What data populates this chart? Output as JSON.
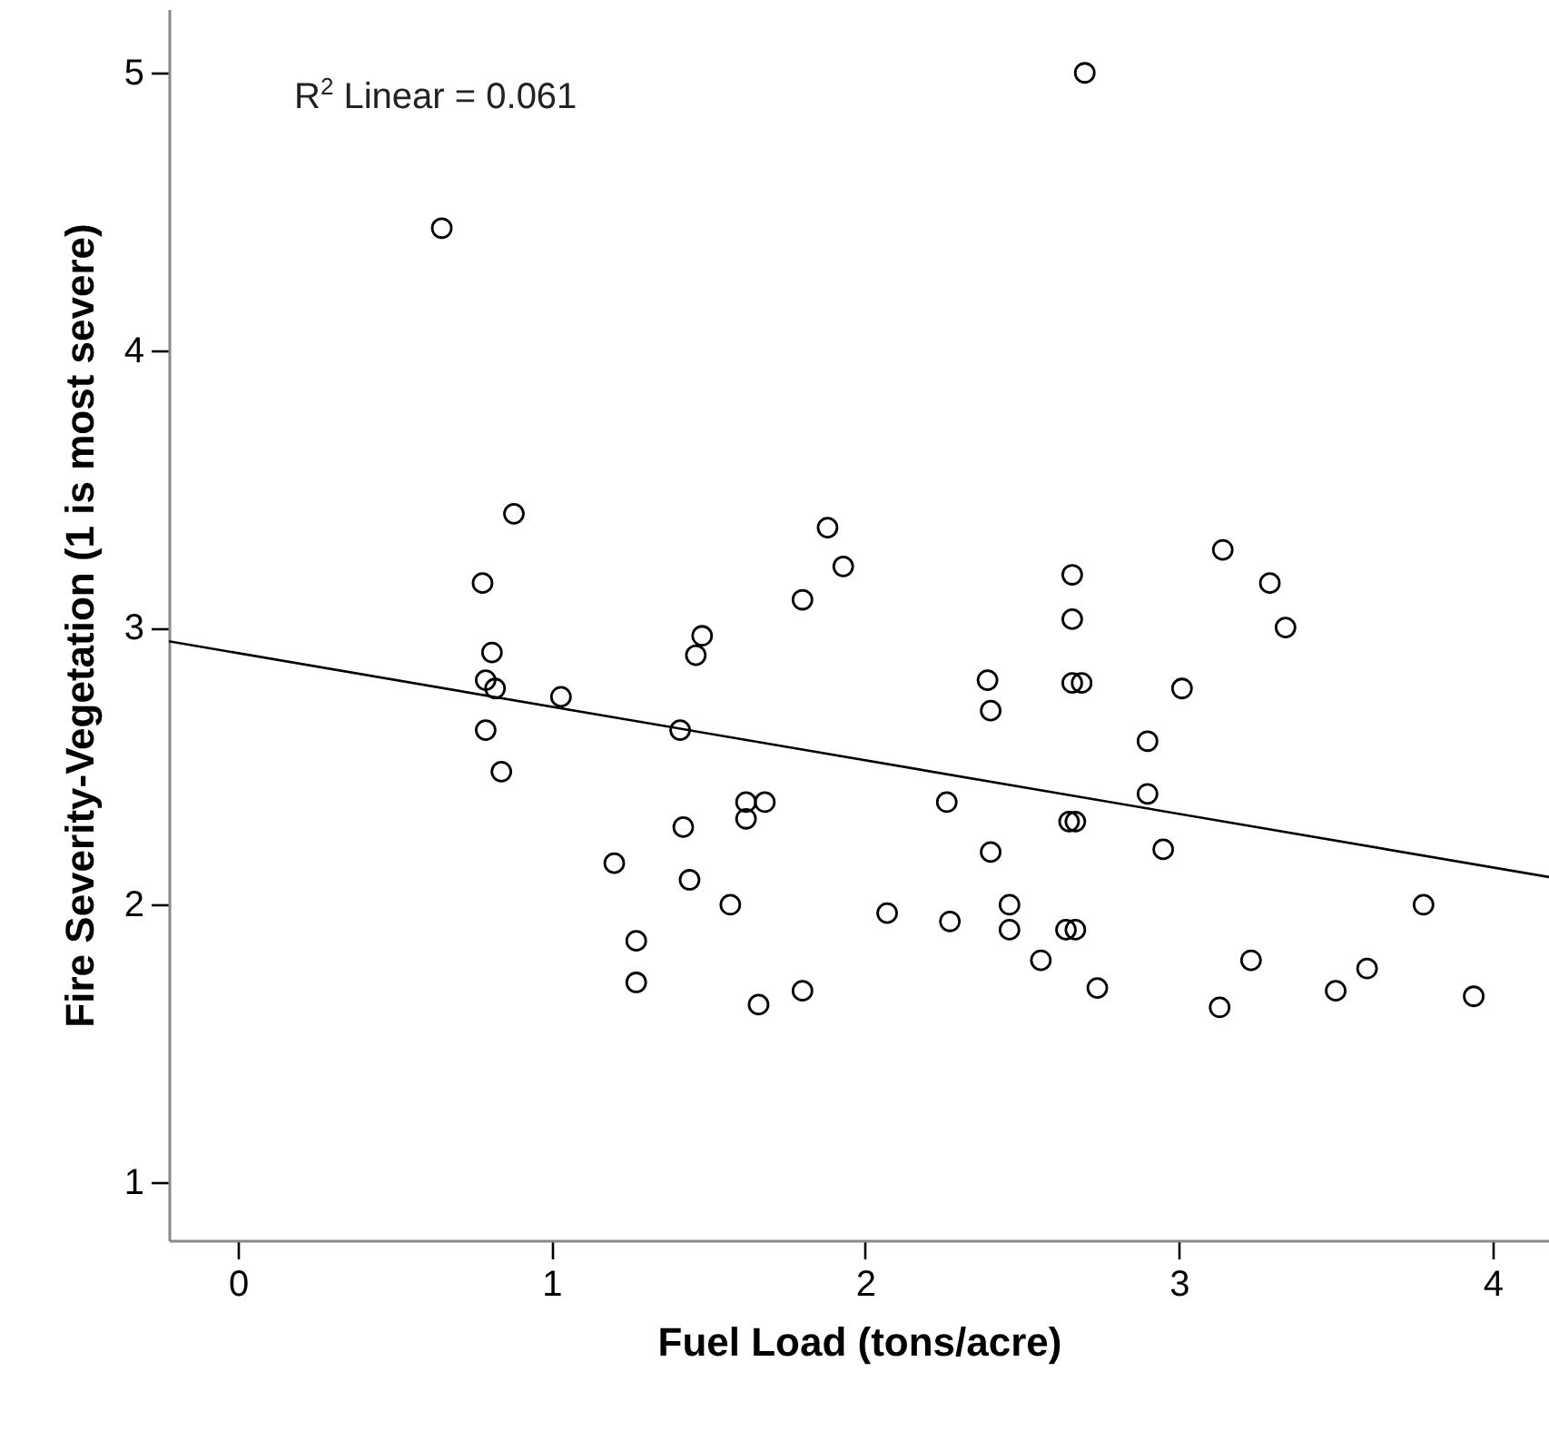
{
  "chart_data": {
    "type": "scatter",
    "xlabel": "Fuel Load (tons/acre)",
    "ylabel": "Fire Severity-Vegetation (1 is most severe)",
    "xlim": [
      -0.22,
      4.18
    ],
    "ylim": [
      0.79,
      5.23
    ],
    "xticks": [
      0,
      1,
      2,
      3,
      4
    ],
    "yticks": [
      1,
      2,
      3,
      4,
      5
    ],
    "grid": false,
    "annotations": [
      "R$^{2}$ Linear = 0.061"
    ],
    "series": [
      {
        "color": "#000000",
        "marker": "circle",
        "x": [
          0.65,
          0.88,
          0.78,
          0.81,
          0.79,
          0.82,
          1.03,
          0.79,
          1.41,
          1.88,
          1.93,
          1.8,
          1.48,
          1.46,
          0.84,
          1.62,
          1.68,
          1.62,
          1.42,
          1.2,
          1.44,
          1.57,
          1.27,
          1.27,
          1.66,
          1.8,
          2.7,
          2.66,
          2.66,
          2.66,
          2.69,
          2.39,
          2.4,
          3.01,
          2.9,
          3.14,
          3.29,
          3.34,
          2.26,
          2.9,
          2.65,
          2.67,
          2.4,
          2.95,
          2.07,
          2.27,
          2.46,
          2.46,
          2.64,
          2.67,
          2.56,
          2.74,
          3.23,
          3.13,
          3.5,
          3.6,
          3.78,
          3.94
        ],
        "values": [
          4.44,
          3.41,
          3.16,
          2.91,
          2.81,
          2.78,
          2.75,
          2.63,
          2.63,
          3.36,
          3.22,
          3.1,
          2.97,
          2.9,
          2.48,
          2.37,
          2.37,
          2.31,
          2.28,
          2.15,
          2.09,
          2.0,
          1.87,
          1.72,
          1.64,
          1.69,
          5.0,
          3.19,
          3.03,
          2.8,
          2.8,
          2.81,
          2.7,
          2.78,
          2.59,
          3.28,
          3.16,
          3.0,
          2.37,
          2.4,
          2.3,
          2.3,
          2.19,
          2.2,
          1.97,
          1.94,
          2.0,
          1.91,
          1.91,
          1.91,
          1.8,
          1.7,
          1.8,
          1.63,
          1.69,
          1.77,
          2.0,
          1.67
        ]
      },
      {
        "type": "line",
        "color": "#000000",
        "x": [
          -0.22,
          4.18
        ],
        "values": [
          2.95,
          2.1
        ]
      }
    ]
  }
}
